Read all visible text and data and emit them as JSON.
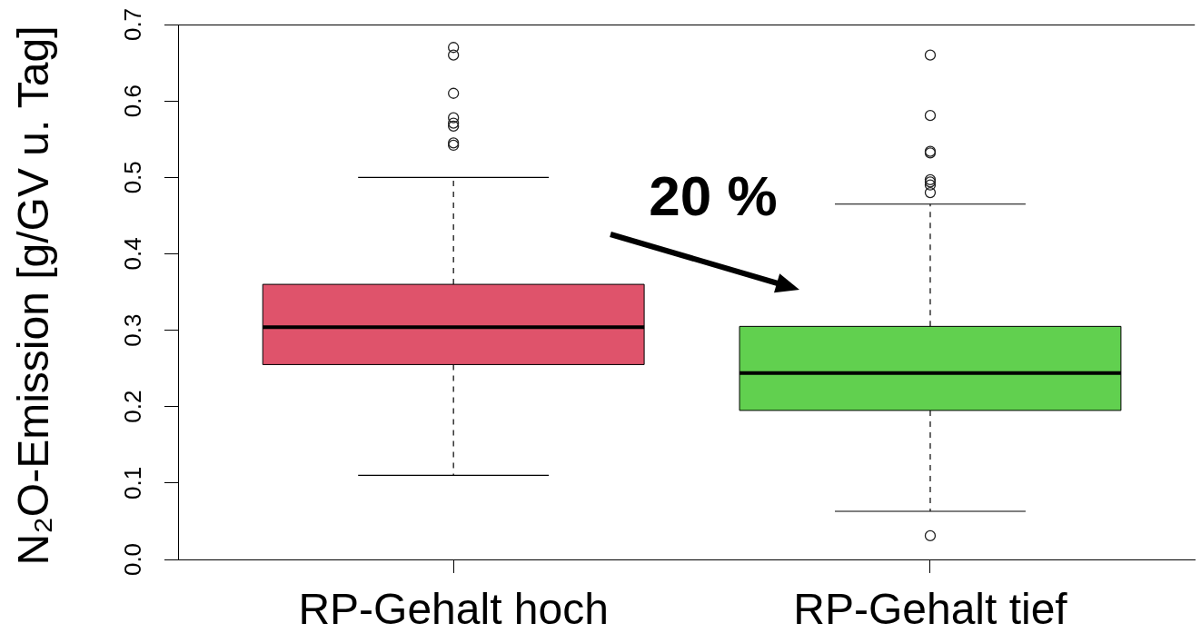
{
  "chart_data": {
    "type": "box",
    "ylabel": "N₂O-Emission [g/GV u. Tag]",
    "categories": [
      "RP-Gehalt hoch",
      "RP-Gehalt tief"
    ],
    "colors": [
      "#df536b",
      "#61d04f"
    ],
    "boxes": [
      {
        "low": 0.11,
        "q1": 0.255,
        "median": 0.304,
        "q3": 0.36,
        "high": 0.5,
        "outliers": [
          0.67,
          0.66,
          0.61,
          0.578,
          0.571,
          0.567,
          0.545,
          0.542
        ]
      },
      {
        "low": 0.063,
        "q1": 0.195,
        "median": 0.244,
        "q3": 0.305,
        "high": 0.465,
        "outliers": [
          0.66,
          0.581,
          0.534,
          0.532,
          0.497,
          0.494,
          0.49,
          0.48,
          0.031
        ]
      }
    ],
    "ylim": [
      0,
      0.7
    ],
    "yticks": [
      {
        "value": 0,
        "label": "0.0"
      },
      0.1,
      0.2,
      0.3,
      0.4,
      0.5,
      0.6,
      0.7
    ],
    "annotations": [
      "20 %"
    ]
  }
}
